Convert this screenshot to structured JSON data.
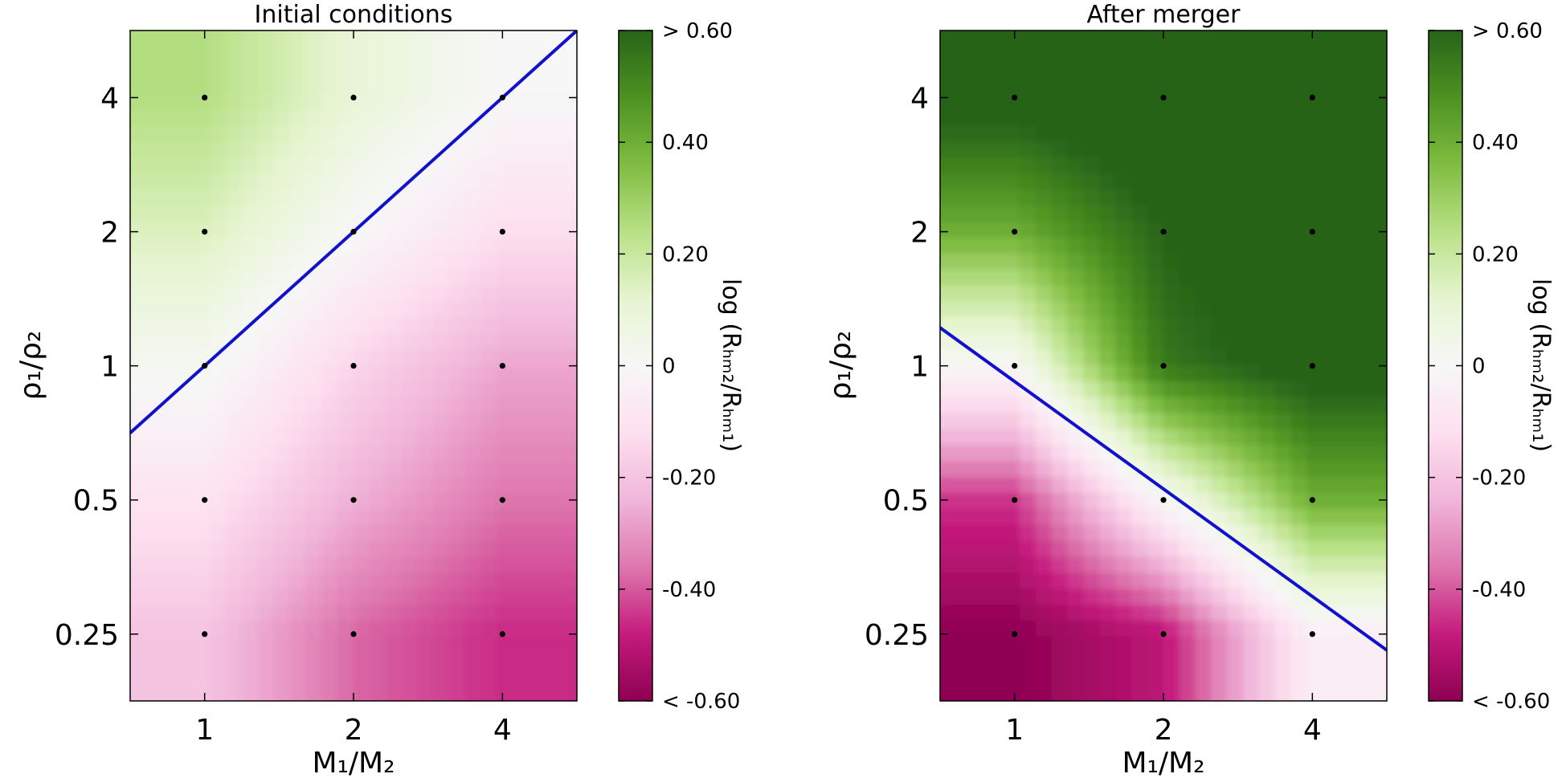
{
  "chart_data": [
    {
      "type": "heatmap",
      "title": "Initial conditions",
      "xlabel": "M₁/M₂",
      "ylabel": "ρ₁/ρ₂",
      "x_scale": "log2",
      "y_scale": "log2",
      "x_ticks": [
        "1",
        "2",
        "4"
      ],
      "y_ticks": [
        "4",
        "2",
        "1",
        "0.5",
        "0.25"
      ],
      "xlim": [
        0.707,
        5.657
      ],
      "ylim": [
        0.177,
        5.657
      ],
      "grid": false,
      "x": [
        1,
        2,
        4
      ],
      "y": [
        0.25,
        0.5,
        1,
        2,
        4
      ],
      "z": [
        [
          -0.2,
          -0.38,
          -0.46
        ],
        [
          -0.1,
          -0.25,
          -0.36
        ],
        [
          0.02,
          -0.15,
          -0.27
        ],
        [
          0.15,
          0.0,
          -0.12
        ],
        [
          0.25,
          0.1,
          0.0
        ]
      ],
      "sample_points": {
        "x": [
          1,
          2,
          4,
          1,
          2,
          4,
          1,
          2,
          4,
          1,
          2,
          4,
          1,
          2,
          4
        ],
        "y": [
          4,
          4,
          4,
          2,
          2,
          2,
          1,
          1,
          1,
          0.5,
          0.5,
          0.5,
          0.25,
          0.25,
          0.25
        ]
      },
      "zero_line": {
        "x": [
          0.707,
          5.657
        ],
        "y": [
          0.707,
          5.657
        ],
        "color": "#1111cc"
      },
      "colorbar": {
        "label": "log (Rₕₘ₂/Rₕₘ₁)",
        "range": [
          -0.6,
          0.6
        ],
        "ticks": [
          "> 0.60",
          "0.40",
          "0.20",
          "0",
          "-0.20",
          "-0.40",
          "< -0.60"
        ]
      }
    },
    {
      "type": "heatmap",
      "title": "After merger",
      "xlabel": "M₁/M₂",
      "ylabel": "ρ₁/ρ₂",
      "x_scale": "log2",
      "y_scale": "log2",
      "x_ticks": [
        "1",
        "2",
        "4"
      ],
      "y_ticks": [
        "4",
        "2",
        "1",
        "0.5",
        "0.25"
      ],
      "xlim": [
        0.707,
        5.657
      ],
      "ylim": [
        0.177,
        5.657
      ],
      "grid": false,
      "x": [
        1,
        2,
        4
      ],
      "y": [
        0.25,
        0.5,
        1,
        2,
        4
      ],
      "z": [
        [
          -0.6,
          -0.5,
          -0.05
        ],
        [
          -0.45,
          0.0,
          0.4
        ],
        [
          0.0,
          0.55,
          0.65
        ],
        [
          0.4,
          0.6,
          0.7
        ],
        [
          0.65,
          0.7,
          0.7
        ]
      ],
      "sample_points": {
        "x": [
          1,
          2,
          4,
          1,
          2,
          4,
          1,
          2,
          4,
          1,
          2,
          4,
          1,
          2,
          4
        ],
        "y": [
          4,
          4,
          4,
          2,
          2,
          2,
          1,
          1,
          1,
          0.5,
          0.5,
          0.5,
          0.25,
          0.25,
          0.25
        ]
      },
      "zero_line": {
        "x": [
          0.707,
          5.657
        ],
        "y": [
          1.218,
          0.23
        ],
        "color": "#1111cc"
      },
      "colorbar": {
        "label": "log (Rₕₘ₂/Rₕₘ₁)",
        "range": [
          -0.6,
          0.6
        ],
        "ticks": [
          "> 0.60",
          "0.40",
          "0.20",
          "0",
          "-0.20",
          "-0.40",
          "< -0.60"
        ]
      }
    }
  ]
}
